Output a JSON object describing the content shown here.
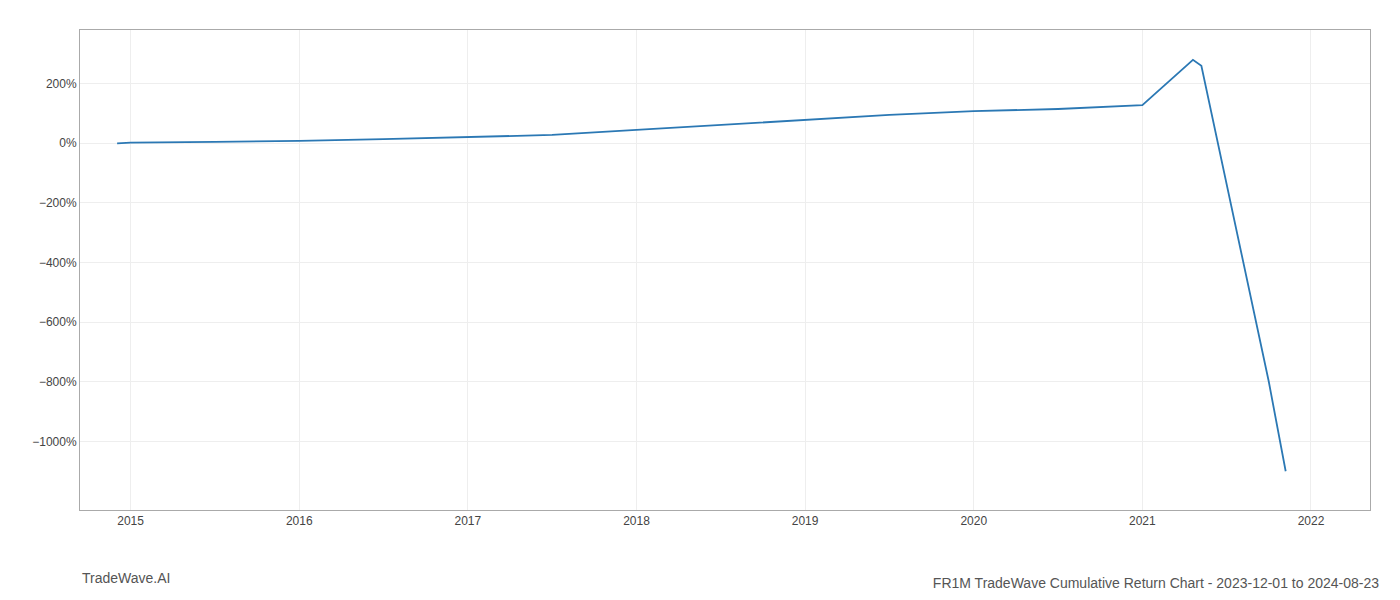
{
  "chart_data": {
    "type": "line",
    "title": "FR1M TradeWave Cumulative Return Chart - 2023-12-01 to 2024-08-23",
    "annotations": [
      "TradeWave.AI"
    ],
    "x": [
      2014.92,
      2015.0,
      2015.5,
      2016.0,
      2016.5,
      2017.0,
      2017.5,
      2018.0,
      2018.5,
      2019.0,
      2019.5,
      2020.0,
      2020.5,
      2021.0,
      2021.3,
      2021.35,
      2021.75,
      2021.85
    ],
    "values": [
      0,
      2,
      5,
      8,
      14,
      20,
      28,
      45,
      62,
      78,
      95,
      108,
      115,
      128,
      280,
      260,
      -800,
      -1100
    ],
    "color": "#2b78b4",
    "xlim": [
      2014.7,
      2022.35
    ],
    "xticks": [
      2015,
      2016,
      2017,
      2018,
      2019,
      2020,
      2021,
      2022
    ],
    "ylim": [
      -1230,
      380
    ],
    "yticks": [
      {
        "value": 200,
        "label": "200%"
      },
      {
        "value": 0,
        "label": "0%"
      },
      {
        "value": -200,
        "label": "−200%"
      },
      {
        "value": -400,
        "label": "−400%"
      },
      {
        "value": -600,
        "label": "−600%"
      },
      {
        "value": -800,
        "label": "−800%"
      },
      {
        "value": -1000,
        "label": "−1000%"
      }
    ],
    "grid": true
  }
}
